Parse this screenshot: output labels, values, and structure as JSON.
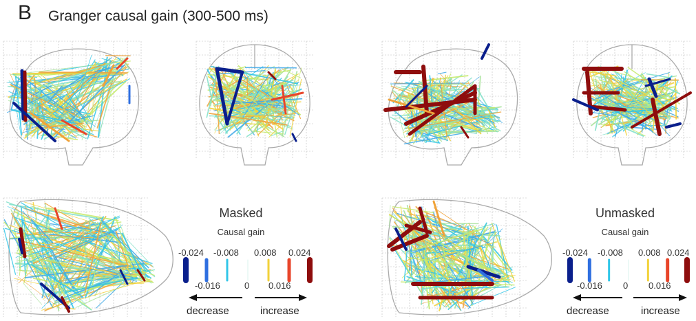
{
  "figure": {
    "panel_letter": "B",
    "title": "Granger causal gain (300-500 ms)"
  },
  "legends": [
    {
      "title": "Masked",
      "subtitle": "Causal gain",
      "upper_ticks": [
        "-0.024",
        "-0.008",
        "0.008",
        "0.024"
      ],
      "lower_ticks": [
        "-0.016",
        "0",
        "0.016"
      ],
      "decrease_label": "decrease",
      "increase_label": "increase"
    },
    {
      "title": "Unmasked",
      "subtitle": "Causal gain",
      "upper_ticks": [
        "-0.024",
        "-0.008",
        "0.008",
        "0.024"
      ],
      "lower_ticks": [
        "-0.016",
        "0",
        "0.016"
      ],
      "decrease_label": "decrease",
      "increase_label": "increase"
    }
  ],
  "colorscale": {
    "values": [
      -0.024,
      -0.016,
      -0.008,
      0,
      0.008,
      0.016,
      0.024
    ],
    "colors": [
      "#0a1f8c",
      "#2f6fe0",
      "#31c6e8",
      "#d8f3ee",
      "#f2d23a",
      "#e8452a",
      "#8e0d0d"
    ]
  }
}
